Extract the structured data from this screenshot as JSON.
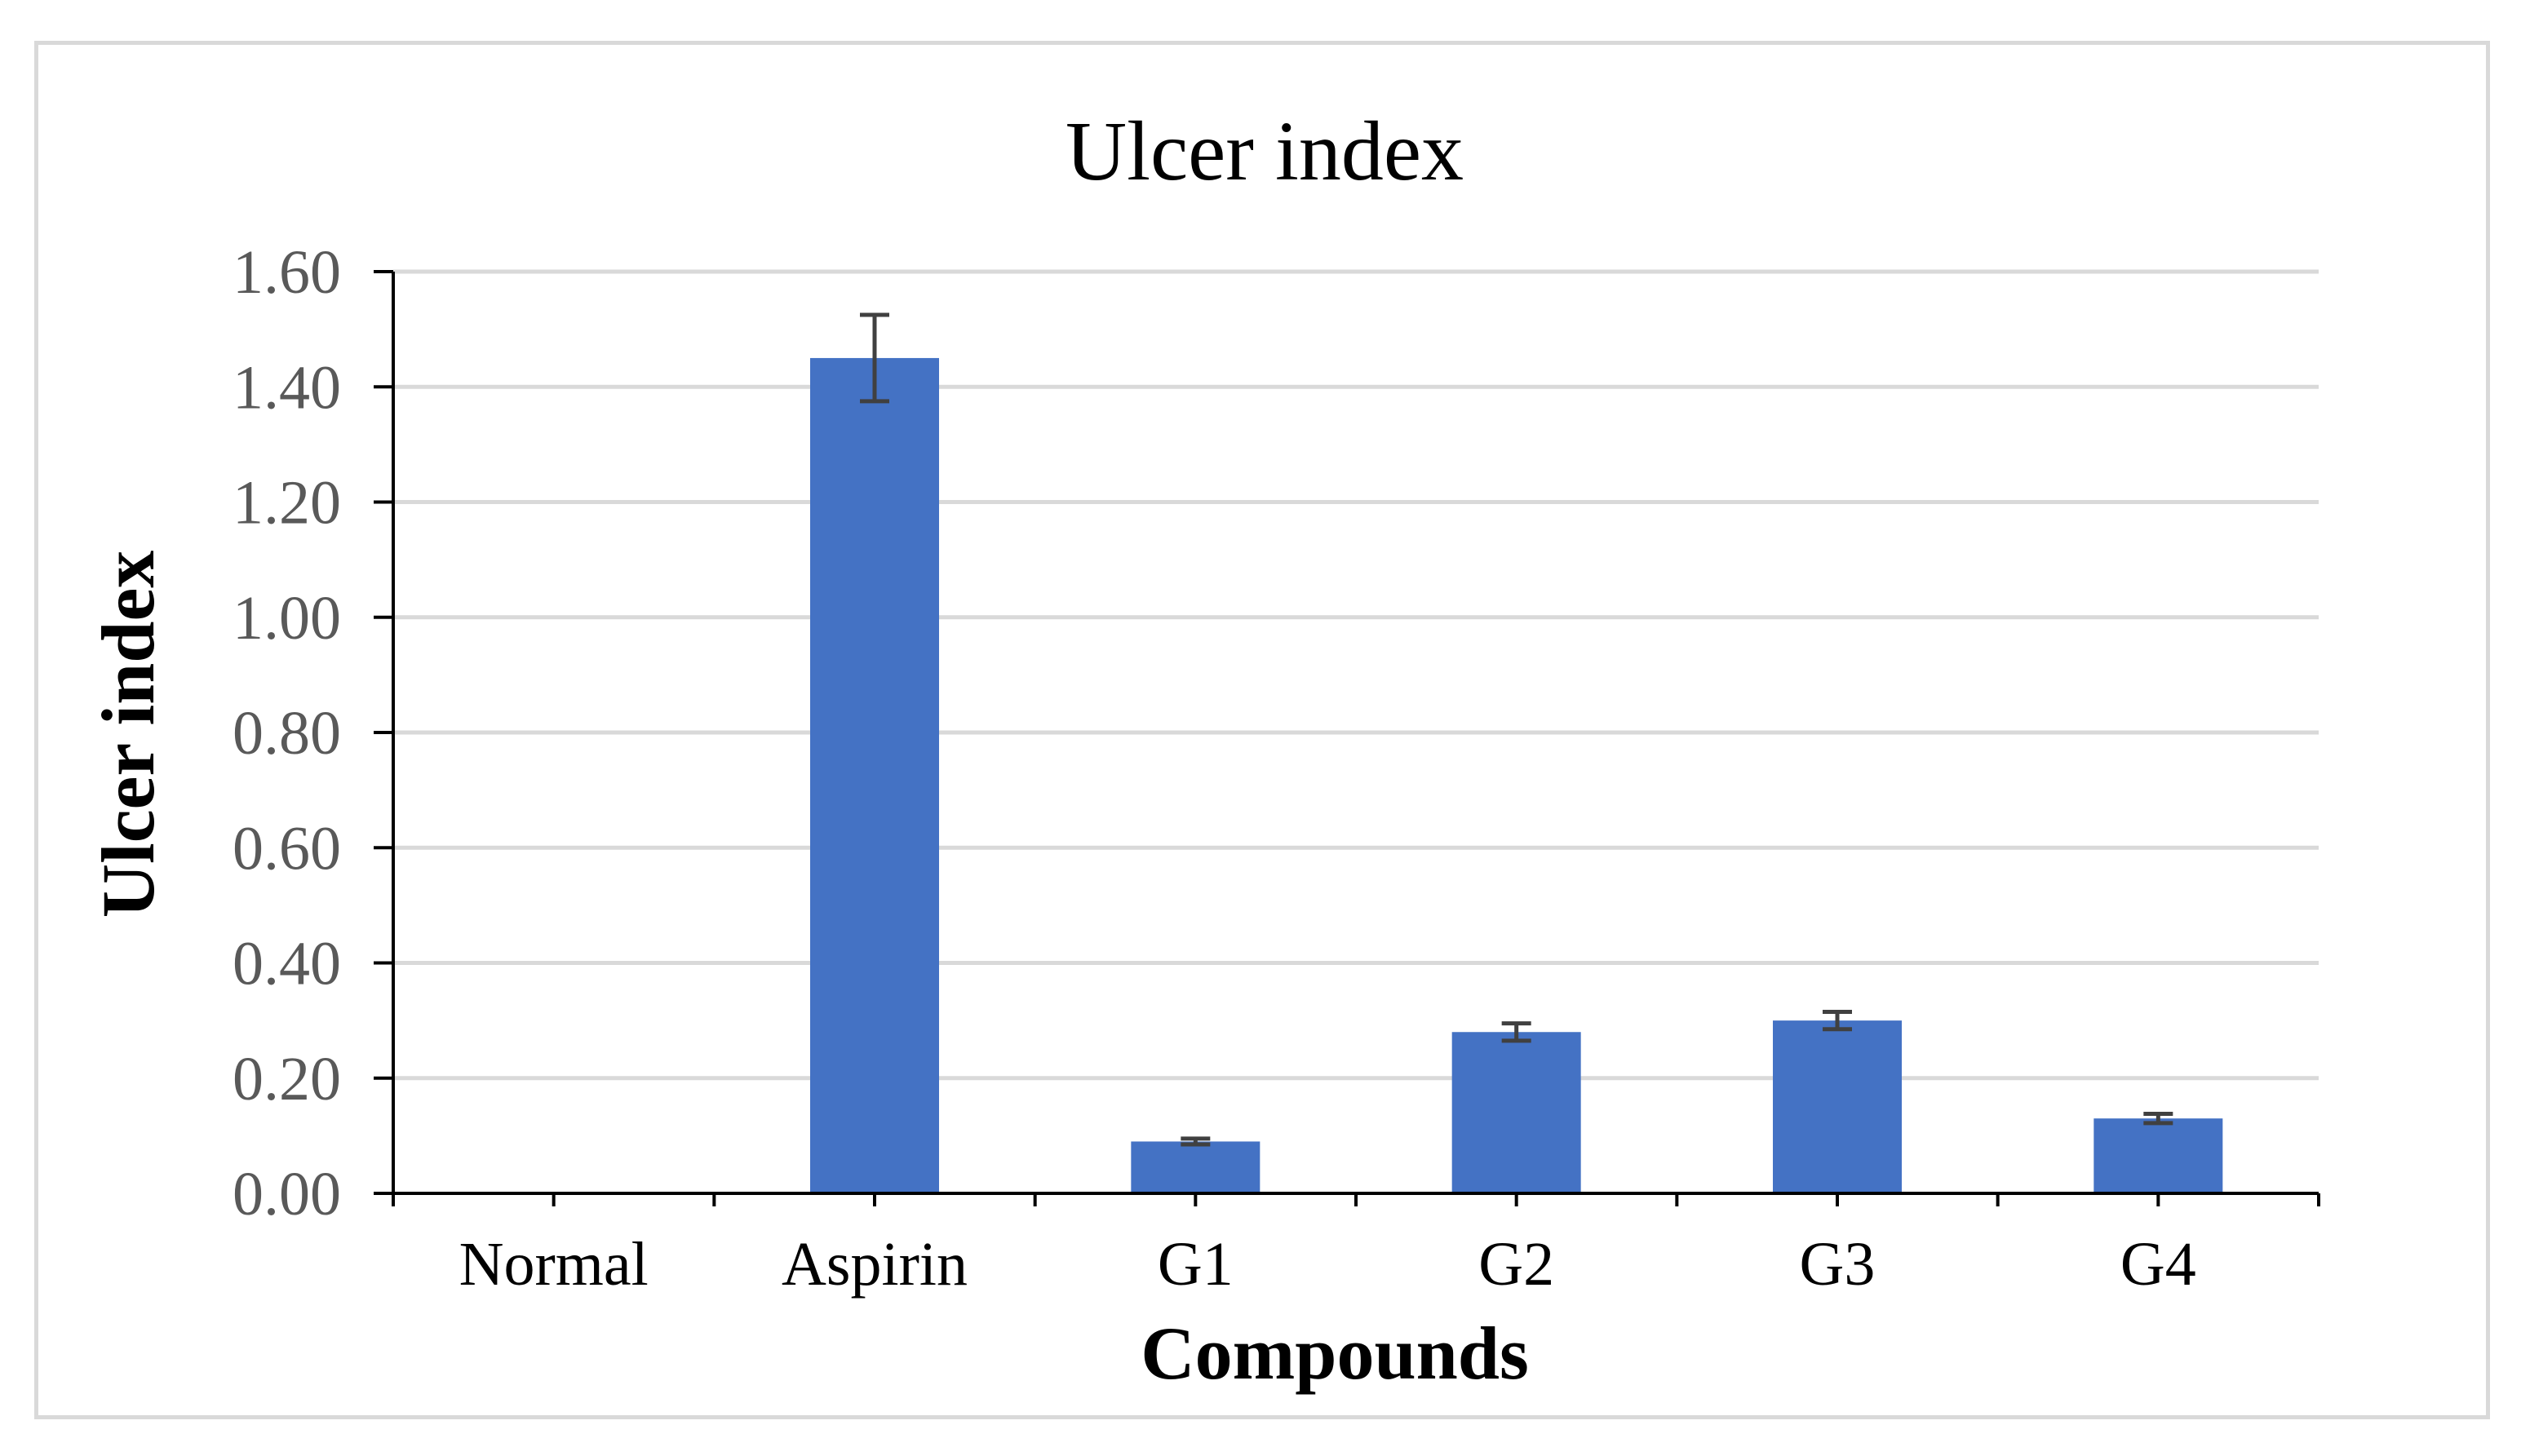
{
  "chart_data": {
    "type": "bar",
    "title": "Ulcer index",
    "xlabel": "Compounds",
    "ylabel": "Ulcer index",
    "categories": [
      "Normal",
      "Aspirin",
      "G1",
      "G2",
      "G3",
      "G4"
    ],
    "values": [
      0.0,
      1.45,
      0.09,
      0.28,
      0.3,
      0.13
    ],
    "error": [
      0.0,
      0.075,
      0.005,
      0.015,
      0.015,
      0.008
    ],
    "ylim": [
      0,
      1.6
    ],
    "yticks": [
      0,
      0.2,
      0.4,
      0.6,
      0.8,
      1.0,
      1.2,
      1.4,
      1.6
    ],
    "ytick_labels": [
      "0.00",
      "0.20",
      "0.40",
      "0.60",
      "0.80",
      "1.00",
      "1.20",
      "1.40",
      "1.60"
    ],
    "grid": true,
    "legend": "none",
    "colors": {
      "bar": "#4472c4",
      "error_bar": "#404040",
      "grid": "#d9d9d9",
      "axis": "#000000",
      "tick_label": "#595959",
      "frame": "#d9d9d9"
    }
  }
}
